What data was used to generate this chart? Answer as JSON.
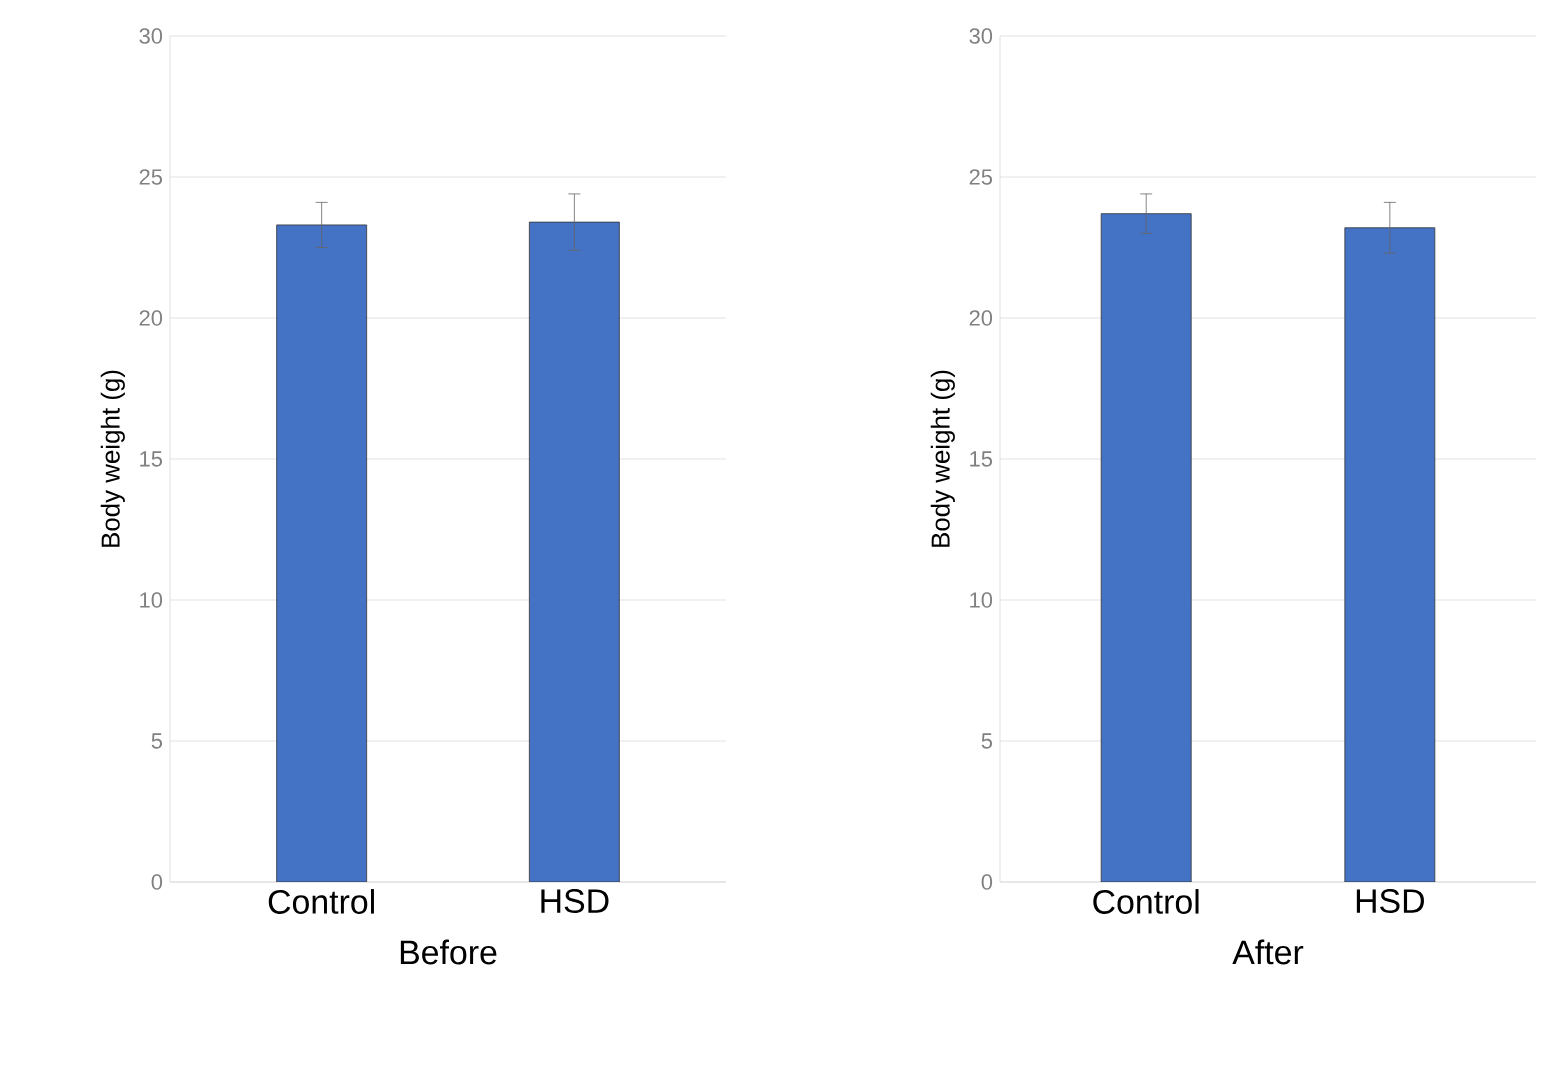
{
  "chart_data": [
    {
      "type": "bar",
      "xlabel": "Before",
      "ylabel": "Body weight (g)",
      "categories": [
        "Control",
        "HSD"
      ],
      "values": [
        23.3,
        23.4
      ],
      "errors": [
        0.8,
        1.0
      ],
      "color": "#4472c4",
      "ylim": [
        0,
        30
      ],
      "yticks": [
        0,
        5,
        10,
        15,
        20,
        25,
        30
      ],
      "grid": "y"
    },
    {
      "type": "bar",
      "xlabel": "After",
      "ylabel": "Body weight (g)",
      "categories": [
        "Control",
        "HSD"
      ],
      "values": [
        23.7,
        23.2
      ],
      "errors": [
        0.7,
        0.9
      ],
      "color": "#4472c4",
      "ylim": [
        0,
        30
      ],
      "yticks": [
        0,
        5,
        10,
        15,
        20,
        25,
        30
      ],
      "grid": "y"
    }
  ]
}
